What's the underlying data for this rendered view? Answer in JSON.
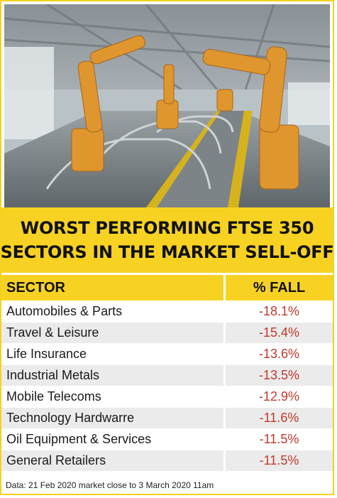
{
  "title_lines": [
    "WORST PERFORMING FTSE 350",
    "SECTORS IN THE MARKET SELL-OFF"
  ],
  "header": {
    "sector": "SECTOR",
    "fall": "% FALL"
  },
  "source_note": "Data: 21 Feb 2020 market close to 3 March 2020 11am",
  "colors": {
    "accent": "#f7d223",
    "negative": "#c0392b",
    "row_shade": "#ebebeb"
  },
  "chart_data": {
    "type": "table",
    "title": "WORST PERFORMING FTSE 350 SECTORS IN THE MARKET SELL-OFF",
    "columns": [
      "SECTOR",
      "% FALL"
    ],
    "rows": [
      {
        "sector": "Automobiles & Parts",
        "fall": "-18.1%"
      },
      {
        "sector": "Travel & Leisure",
        "fall": "-15.4%"
      },
      {
        "sector": "Life Insurance",
        "fall": "-13.6%"
      },
      {
        "sector": "Industrial Metals",
        "fall": "-13.5%"
      },
      {
        "sector": "Mobile Telecoms",
        "fall": "-12.9%"
      },
      {
        "sector": "Technology Hardwarre",
        "fall": "-11.6%"
      },
      {
        "sector": "Oil Equipment & Services",
        "fall": "-11.5%"
      },
      {
        "sector": "General Retailers",
        "fall": "-11.5%"
      }
    ]
  }
}
